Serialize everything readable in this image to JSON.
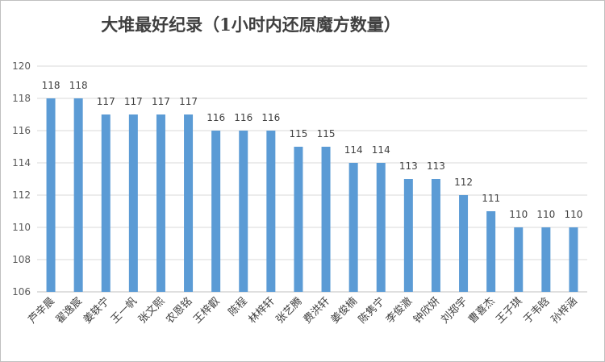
{
  "chart_data": {
    "type": "bar",
    "title": "大堆最好纪录（1小时内还原魔方数量）",
    "xlabel": "",
    "ylabel": "",
    "ylim": [
      106,
      120
    ],
    "ytick_step": 2,
    "yticks": [
      "106",
      "108",
      "110",
      "112",
      "114",
      "116",
      "118",
      "120"
    ],
    "grid": true,
    "legend": "none",
    "bar_color": "#5b9bd5",
    "categories": [
      "芦辛晨",
      "翟逸宸",
      "姜轶宁",
      "王一帆",
      "张文熙",
      "农恩铭",
      "王梓叡",
      "陈程",
      "林梓轩",
      "张艺腾",
      "费洪轩",
      "姜俊楠",
      "陈隽宁",
      "李俊澈",
      "钟欣妍",
      "刘郑宇",
      "曹喜杰",
      "王子琪",
      "于韦晗",
      "孙梓涵"
    ],
    "values": [
      118,
      118,
      117,
      117,
      117,
      117,
      116,
      116,
      116,
      115,
      115,
      114,
      114,
      113,
      113,
      112,
      111,
      110,
      110,
      110
    ]
  }
}
